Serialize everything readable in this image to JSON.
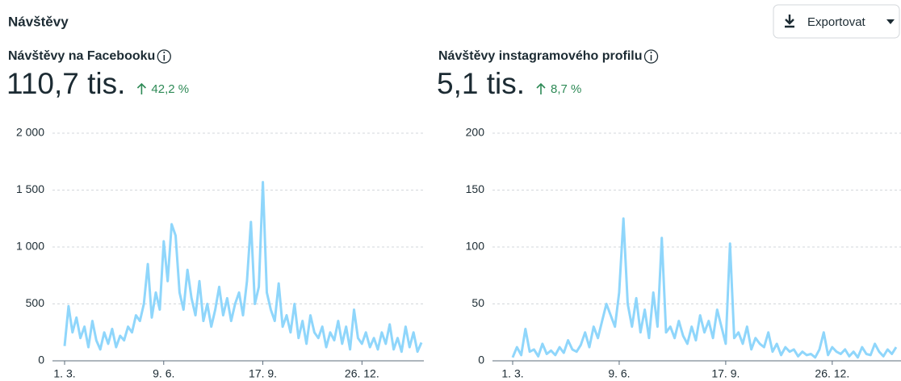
{
  "header": {
    "title": "Návštěvy",
    "button": "Exportovat"
  },
  "chart_data": [
    {
      "type": "line",
      "title": "Návštěvy na Facebooku",
      "total": "110,7 tis.",
      "change": "42,2 %",
      "color": "#8fd6fb",
      "categories": [
        "1. 3.",
        null,
        null,
        null,
        null,
        null,
        null,
        null,
        null,
        null,
        null,
        null,
        null,
        null,
        null,
        null,
        null,
        null,
        null,
        null,
        null,
        null,
        null,
        null,
        null,
        "9. 6.",
        null,
        null,
        null,
        null,
        null,
        null,
        null,
        null,
        null,
        null,
        null,
        null,
        null,
        null,
        null,
        null,
        null,
        null,
        null,
        null,
        null,
        null,
        null,
        null,
        "17. 9.",
        null,
        null,
        null,
        null,
        null,
        null,
        null,
        null,
        null,
        null,
        null,
        null,
        null,
        null,
        null,
        null,
        null,
        null,
        null,
        null,
        null,
        null,
        null,
        null,
        "26. 12.",
        null,
        null,
        null,
        null,
        null,
        null,
        null,
        null,
        null,
        null,
        null,
        null,
        null,
        null,
        null
      ],
      "values": [
        130,
        480,
        250,
        380,
        200,
        300,
        120,
        350,
        180,
        100,
        250,
        150,
        280,
        120,
        220,
        180,
        300,
        250,
        400,
        350,
        500,
        850,
        380,
        600,
        450,
        1050,
        700,
        1200,
        1100,
        600,
        450,
        800,
        550,
        400,
        700,
        350,
        500,
        300,
        450,
        650,
        400,
        550,
        350,
        500,
        600,
        400,
        700,
        1220,
        500,
        650,
        1570,
        600,
        450,
        350,
        680,
        300,
        400,
        250,
        500,
        200,
        350,
        150,
        400,
        250,
        200,
        300,
        120,
        250,
        180,
        350,
        150,
        300,
        100,
        450,
        200,
        150,
        250,
        120,
        200,
        100,
        250,
        150,
        320,
        100,
        200,
        80,
        300,
        120,
        250,
        80,
        160
      ],
      "ylim": [
        0,
        2000
      ],
      "yticks": [
        0,
        500,
        {
          "value": 1000,
          "label": "1 000"
        },
        {
          "value": 1500,
          "label": "1 500"
        },
        {
          "value": 2000,
          "label": "2 000"
        }
      ],
      "grid": true
    },
    {
      "type": "line",
      "title": "Návštěvy instagramového profilu",
      "total": "5,1 tis.",
      "change": "8,7 %",
      "color": "#8fd6fb",
      "categories": [
        "1. 3.",
        null,
        null,
        null,
        null,
        null,
        null,
        null,
        null,
        null,
        null,
        null,
        null,
        null,
        null,
        null,
        null,
        null,
        null,
        null,
        null,
        null,
        null,
        null,
        null,
        "9. 6.",
        null,
        null,
        null,
        null,
        null,
        null,
        null,
        null,
        null,
        null,
        null,
        null,
        null,
        null,
        null,
        null,
        null,
        null,
        null,
        null,
        null,
        null,
        null,
        null,
        "17. 9.",
        null,
        null,
        null,
        null,
        null,
        null,
        null,
        null,
        null,
        null,
        null,
        null,
        null,
        null,
        null,
        null,
        null,
        null,
        null,
        null,
        null,
        null,
        null,
        null,
        "26. 12.",
        null,
        null,
        null,
        null,
        null,
        null,
        null,
        null,
        null,
        null,
        null,
        null,
        null,
        null,
        null
      ],
      "values": [
        3,
        12,
        5,
        28,
        8,
        10,
        4,
        15,
        6,
        9,
        5,
        12,
        7,
        18,
        10,
        8,
        14,
        25,
        12,
        30,
        20,
        35,
        50,
        40,
        30,
        60,
        125,
        50,
        30,
        55,
        25,
        45,
        20,
        60,
        30,
        108,
        25,
        30,
        20,
        35,
        22,
        15,
        30,
        18,
        40,
        25,
        35,
        20,
        45,
        30,
        15,
        103,
        20,
        25,
        15,
        30,
        10,
        20,
        15,
        12,
        25,
        8,
        15,
        5,
        12,
        8,
        10,
        4,
        8,
        5,
        6,
        3,
        10,
        25,
        5,
        12,
        8,
        6,
        10,
        4,
        8,
        3,
        12,
        6,
        5,
        15,
        8,
        4,
        10,
        6,
        12
      ],
      "ylim": [
        0,
        200
      ],
      "yticks": [
        0,
        50,
        100,
        150,
        200
      ],
      "grid": true
    }
  ]
}
